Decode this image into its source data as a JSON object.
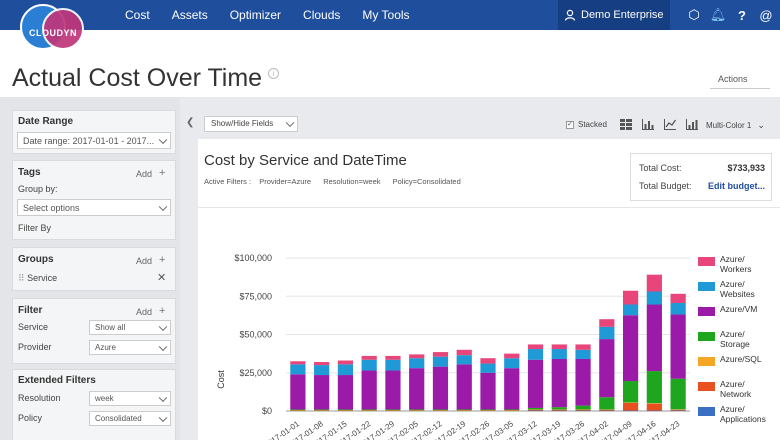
{
  "nav": {
    "logo": "CLOUDYN",
    "items": [
      "Cost",
      "Assets",
      "Optimizer",
      "Clouds",
      "My Tools"
    ],
    "account": "Demo Enterprise"
  },
  "page": {
    "title": "Actual Cost Over Time",
    "actions": "Actions"
  },
  "sidebar": {
    "date_range": {
      "title": "Date Range",
      "value": "Date range:  2017-01-01 - 2017..."
    },
    "tags": {
      "title": "Tags",
      "add": "Add",
      "group_by": "Group by:",
      "select_placeholder": "Select options",
      "filter_by": "Filter By"
    },
    "groups": {
      "title": "Groups",
      "add": "Add",
      "item": "Service"
    },
    "filter": {
      "title": "Filter",
      "add": "Add",
      "service_label": "Service",
      "service_value": "Show all",
      "provider_label": "Provider",
      "provider_value": "Azure"
    },
    "extended": {
      "title": "Extended Filters",
      "resolution_label": "Resolution",
      "resolution_value": "week",
      "policy_label": "Policy",
      "policy_value": "Consolidated"
    }
  },
  "toolbar": {
    "show_hide": "Show/Hide Fields",
    "stacked": "Stacked",
    "palette": "Multi-Color 1"
  },
  "chart_header": {
    "title": "Cost by Service and DateTime",
    "active_filters": "Active Filters :",
    "filter_provider": "Provider=Azure",
    "filter_resolution": "Resolution=week",
    "filter_policy": "Policy=Consolidated"
  },
  "totals": {
    "cost_label": "Total Cost:",
    "cost_value": "$733,933",
    "budget_label": "Total Budget:",
    "budget_link": "Edit budget..."
  },
  "chart_data": {
    "type": "bar",
    "stacked": true,
    "ylabel": "Cost",
    "ylim": [
      0,
      100000
    ],
    "yticks": [
      "$0",
      "$25,000",
      "$50,000",
      "$75,000",
      "$100,000"
    ],
    "categories": [
      "2017-01-01",
      "2017-01-08",
      "2017-01-15",
      "2017-01-22",
      "2017-01-29",
      "2017-02-05",
      "2017-02-12",
      "2017-02-19",
      "2017-02-26",
      "2017-03-05",
      "2017-03-12",
      "2017-03-19",
      "2017-03-26",
      "2017-04-02",
      "2017-04-09",
      "2017-04-16",
      "2017-04-23"
    ],
    "series": [
      {
        "name": "Azure/ Applications",
        "color": "#3a6fc4",
        "values": [
          0,
          0,
          0,
          0,
          0,
          0,
          0,
          0,
          0,
          0,
          300,
          300,
          300,
          300,
          300,
          300,
          300
        ]
      },
      {
        "name": "Azure/ Network",
        "color": "#e8501f",
        "values": [
          300,
          300,
          300,
          300,
          300,
          300,
          300,
          300,
          300,
          300,
          400,
          400,
          400,
          400,
          5000,
          4500,
          500
        ]
      },
      {
        "name": "Azure/SQL",
        "color": "#f5a623",
        "values": [
          200,
          200,
          200,
          200,
          200,
          200,
          200,
          200,
          200,
          200,
          300,
          300,
          300,
          300,
          300,
          300,
          300
        ]
      },
      {
        "name": "Azure/ Storage",
        "color": "#1fa61f",
        "values": [
          500,
          500,
          500,
          500,
          500,
          500,
          500,
          500,
          500,
          500,
          1000,
          1500,
          2500,
          8000,
          14000,
          21000,
          20000
        ]
      },
      {
        "name": "Azure/VM",
        "color": "#9b1aa8",
        "values": [
          23000,
          22500,
          22500,
          25500,
          25500,
          27000,
          28000,
          29500,
          24000,
          27000,
          31500,
          31500,
          30500,
          38000,
          43000,
          43500,
          42000
        ]
      },
      {
        "name": "Azure/ Websites",
        "color": "#1f9ad6",
        "values": [
          6500,
          6500,
          7000,
          7000,
          7000,
          6500,
          6500,
          6000,
          6000,
          6500,
          7000,
          6500,
          6000,
          8000,
          7000,
          8500,
          7500
        ]
      },
      {
        "name": "Azure/ Workers",
        "color": "#e8457a",
        "values": [
          2000,
          2000,
          2500,
          2500,
          2500,
          2500,
          3000,
          3500,
          3500,
          3000,
          3000,
          3000,
          3500,
          5000,
          9000,
          11000,
          6000
        ]
      }
    ]
  }
}
